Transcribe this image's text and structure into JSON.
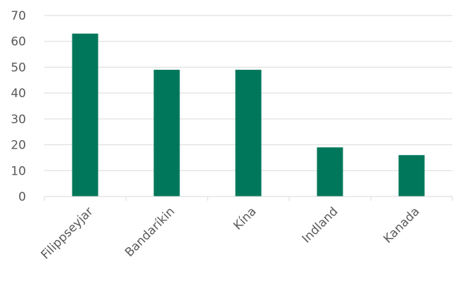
{
  "chart_data": {
    "type": "bar",
    "categories": [
      "Filippseyjar",
      "Bandaríkin",
      "Kína",
      "Indland",
      "Kanada"
    ],
    "values": [
      63,
      49,
      49,
      19,
      16
    ],
    "title": "",
    "xlabel": "",
    "ylabel": "",
    "ylim": [
      0,
      70
    ],
    "yticks": [
      0,
      10,
      20,
      30,
      40,
      50,
      60,
      70
    ],
    "grid": true,
    "legend": "none",
    "bar_color": "#00775a"
  }
}
